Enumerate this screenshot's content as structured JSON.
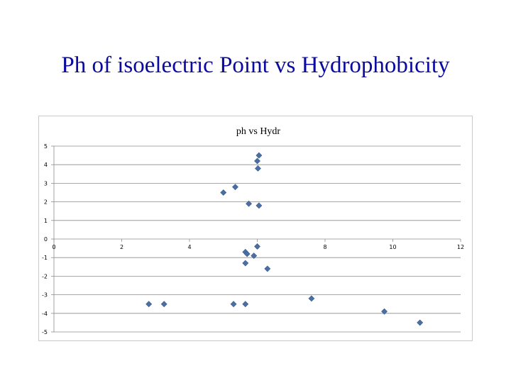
{
  "slide": {
    "title": "Ph of isoelectric Point vs Hydrophobicity"
  },
  "chart_data": {
    "type": "scatter",
    "title": "ph vs Hydr",
    "xlabel": "",
    "ylabel": "",
    "xlim": [
      0,
      12
    ],
    "ylim": [
      -5,
      5
    ],
    "x_ticks": [
      "0",
      "2",
      "4",
      "6",
      "8",
      "10",
      "12"
    ],
    "y_ticks": [
      "5",
      "4",
      "3",
      "2",
      "1",
      "0",
      "-1",
      "-2",
      "-3",
      "-4",
      "-5"
    ],
    "grid": "horizontal",
    "legend": "none",
    "marker": "diamond",
    "marker_color": "#4a6fa5",
    "series": [
      {
        "points": [
          [
            6.05,
            4.5
          ],
          [
            6.0,
            4.2
          ],
          [
            6.02,
            3.8
          ],
          [
            5.35,
            2.8
          ],
          [
            5.0,
            2.5
          ],
          [
            5.75,
            1.9
          ],
          [
            6.05,
            1.8
          ],
          [
            6.0,
            -0.4
          ],
          [
            5.65,
            -0.7
          ],
          [
            5.7,
            -0.8
          ],
          [
            5.9,
            -0.9
          ],
          [
            5.65,
            -1.3
          ],
          [
            6.3,
            -1.6
          ],
          [
            2.8,
            -3.5
          ],
          [
            3.25,
            -3.5
          ],
          [
            5.3,
            -3.5
          ],
          [
            5.65,
            -3.5
          ],
          [
            7.6,
            -3.2
          ],
          [
            9.75,
            -3.9
          ],
          [
            10.8,
            -4.5
          ]
        ]
      }
    ]
  }
}
